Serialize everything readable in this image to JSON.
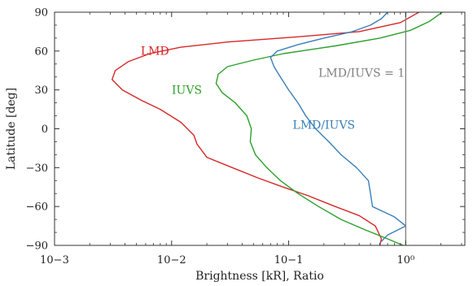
{
  "chart_data": {
    "type": "line",
    "xlabel": "Brightness [kR], Ratio",
    "ylabel": "Latitude [deg]",
    "xscale": "log",
    "xlim": [
      0.001,
      3.2
    ],
    "ylim": [
      -90,
      90
    ],
    "xticks": [
      0.001,
      0.01,
      0.1,
      1
    ],
    "xtick_labels": [
      "10−3",
      "10−2",
      "10−1",
      "10⁰"
    ],
    "yticks": [
      -90,
      -60,
      -30,
      0,
      30,
      60,
      90
    ],
    "ytick_labels": [
      "−90",
      "−60",
      "−30",
      "0",
      "30",
      "60",
      "90"
    ],
    "grid": false,
    "legend": "none",
    "reference_line": {
      "x": 1,
      "label": "LMD/IUVS = 1",
      "color": "#7f7f7f"
    },
    "series": [
      {
        "name": "LMD",
        "color": "#d62728",
        "x": [
          0.6,
          0.62,
          0.55,
          0.4,
          0.25,
          0.15,
          0.09,
          0.055,
          0.033,
          0.02,
          0.0165,
          0.0155,
          0.012,
          0.008,
          0.0055,
          0.0038,
          0.0031,
          0.0033,
          0.0043,
          0.0065,
          0.012,
          0.03,
          0.12,
          0.4,
          0.9,
          1.3
        ],
        "y": [
          -90,
          -85,
          -75,
          -67,
          -60,
          -52,
          -45,
          -38,
          -30,
          -22,
          -12,
          -5,
          5,
          15,
          22,
          30,
          38,
          45,
          52,
          58,
          63,
          67,
          71,
          75,
          82,
          90
        ]
      },
      {
        "name": "IUVS",
        "color": "#2ca02c",
        "x": [
          0.95,
          0.7,
          0.45,
          0.28,
          0.18,
          0.12,
          0.085,
          0.065,
          0.052,
          0.047,
          0.048,
          0.044,
          0.035,
          0.027,
          0.024,
          0.025,
          0.03,
          0.05,
          0.09,
          0.25,
          0.6,
          1.1,
          1.6,
          2.05
        ],
        "y": [
          -90,
          -85,
          -78,
          -70,
          -60,
          -50,
          -40,
          -30,
          -20,
          -10,
          0,
          10,
          20,
          28,
          35,
          42,
          48,
          53,
          58,
          64,
          70,
          76,
          83,
          90
        ]
      },
      {
        "name": "LMD/IUVS",
        "color": "#3a7fb8",
        "x": [
          0.62,
          0.7,
          1.0,
          0.8,
          0.52,
          0.5,
          0.48,
          0.38,
          0.28,
          0.22,
          0.17,
          0.14,
          0.12,
          0.1,
          0.085,
          0.075,
          0.07,
          0.08,
          0.12,
          0.2,
          0.35,
          0.5,
          0.62,
          0.7
        ],
        "y": [
          -87,
          -82,
          -75,
          -68,
          -60,
          -50,
          -40,
          -30,
          -20,
          -10,
          0,
          10,
          20,
          30,
          40,
          48,
          55,
          60,
          65,
          70,
          75,
          80,
          85,
          90
        ]
      }
    ]
  }
}
